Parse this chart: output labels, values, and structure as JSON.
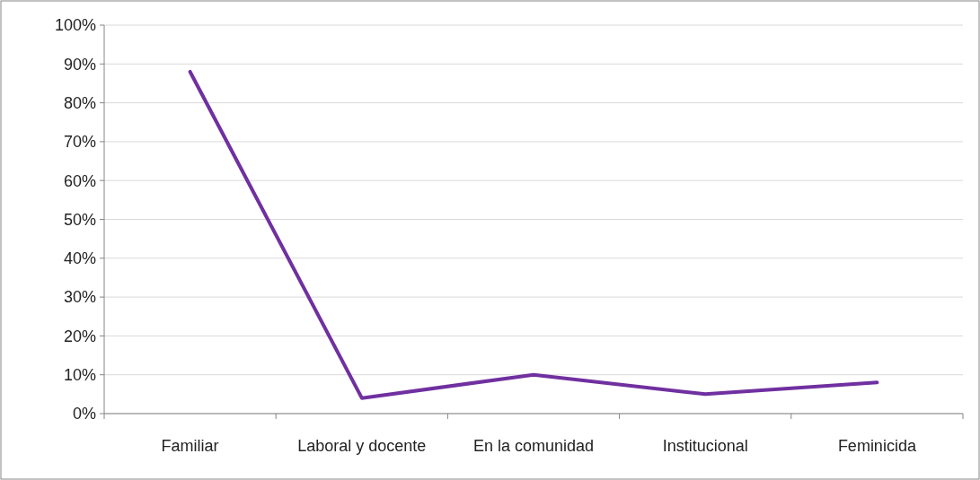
{
  "chart_data": {
    "type": "line",
    "categories": [
      "Familiar",
      "Laboral y docente",
      "En la comunidad",
      "Institucional",
      "Feminicida"
    ],
    "series": [
      {
        "color": "#7030a0",
        "values": [
          88,
          4,
          10,
          5,
          8
        ]
      }
    ],
    "ylim": [
      0,
      100
    ],
    "yticks": [
      {
        "value": 0,
        "label": "0%"
      },
      {
        "value": 10,
        "label": "10%"
      },
      {
        "value": 20,
        "label": "20%"
      },
      {
        "value": 30,
        "label": "30%"
      },
      {
        "value": 40,
        "label": "40%"
      },
      {
        "value": 50,
        "label": "50%"
      },
      {
        "value": 60,
        "label": "60%"
      },
      {
        "value": 70,
        "label": "70%"
      },
      {
        "value": 80,
        "label": "80%"
      },
      {
        "value": 90,
        "label": "90%"
      },
      {
        "value": 100,
        "label": "100%"
      }
    ],
    "grid": "y",
    "marker": "none",
    "line_style": "solid"
  }
}
